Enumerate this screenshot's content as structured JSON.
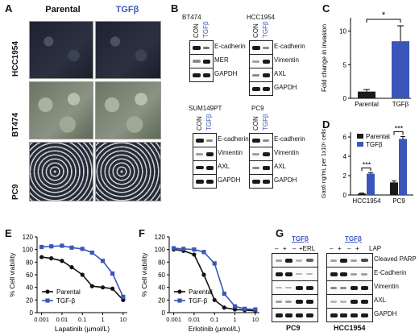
{
  "panels": {
    "A": {
      "letter": "A",
      "col_parental": "Parental",
      "col_tgf": "TGFβ",
      "rows": [
        "HCC1954",
        "BT474",
        "PC9"
      ]
    },
    "B": {
      "letter": "B",
      "blots": [
        {
          "cell": "BT474",
          "conditions": [
            "CON",
            "TGFβ"
          ],
          "markers": [
            "E-cadherin",
            "MER",
            "GAPDH"
          ]
        },
        {
          "cell": "HCC1954",
          "conditions": [
            "CON",
            "TGFβ"
          ],
          "markers": [
            "E-cadherin",
            "Vimentin",
            "AXL",
            "GAPDH"
          ]
        },
        {
          "cell": "SUM149PT",
          "conditions": [
            "CON",
            "TGFβ"
          ],
          "markers": [
            "E-cadherin",
            "Vimentin",
            "AXL",
            "GAPDH"
          ]
        },
        {
          "cell": "PC9",
          "conditions": [
            "CON",
            "TGFβ"
          ],
          "markers": [
            "E-cadherin",
            "Vimentin",
            "AXL",
            "GAPDH"
          ]
        }
      ]
    },
    "G": {
      "letter": "G",
      "tgf_label": "TGFβ",
      "erl_label": "+ERL",
      "lap_label": "LAP",
      "signs": [
        "–",
        "+",
        "–",
        "+"
      ],
      "markers": [
        "Cleaved PARP",
        "E-Cadherin",
        "Vimentin",
        "AXL",
        "GAPDH"
      ],
      "cells": [
        "PC9",
        "HCC1954"
      ]
    }
  },
  "colors": {
    "parental": "#111111",
    "tgf": "#3a56b8",
    "bar_parental": "#1a1a1a",
    "bar_tgf": "#3a56b8"
  },
  "chart_data": [
    {
      "id": "C",
      "letter": "C",
      "type": "bar",
      "categories": [
        "Parental",
        "TGFβ"
      ],
      "values": [
        1.0,
        8.5
      ],
      "errors": [
        0.3,
        2.3
      ],
      "ylabel": "Fold change in invasion",
      "ylim": [
        0,
        12
      ],
      "yticks": [
        0,
        5,
        10
      ],
      "significance": "*"
    },
    {
      "id": "D",
      "letter": "D",
      "type": "bar",
      "categories": [
        "HCC1954",
        "PC9"
      ],
      "series": [
        {
          "name": "Parental",
          "values": [
            0.15,
            1.3
          ],
          "errors": [
            0.05,
            0.15
          ]
        },
        {
          "name": "TGFβ",
          "values": [
            2.2,
            5.8
          ],
          "errors": [
            0.1,
            0.25
          ]
        }
      ],
      "ylabel": "Gas6 ng/mL per 1x10⁶ cells",
      "ylim": [
        0,
        6.5
      ],
      "yticks": [
        0,
        2,
        4,
        6
      ],
      "significance": [
        "***",
        "***"
      ]
    },
    {
      "id": "E",
      "letter": "E",
      "type": "scatter",
      "xlabel": "Lapatinib (µmol/L)",
      "ylabel": "% Cell viability",
      "xscale": "log",
      "xticks": [
        0.001,
        0.01,
        0.1,
        1,
        10
      ],
      "xtick_labels": [
        "0.001",
        "0.01",
        "0.1",
        "1",
        "10"
      ],
      "ylim": [
        0,
        120
      ],
      "yticks": [
        0,
        20,
        40,
        60,
        80,
        100,
        120
      ],
      "series": [
        {
          "name": "Parental",
          "x": [
            0.001,
            0.003,
            0.01,
            0.03,
            0.1,
            0.3,
            1,
            3,
            10
          ],
          "y": [
            88,
            86,
            82,
            72,
            60,
            42,
            40,
            38,
            20
          ]
        },
        {
          "name": "TGF-β",
          "x": [
            0.001,
            0.003,
            0.01,
            0.03,
            0.1,
            0.3,
            1,
            3,
            10
          ],
          "y": [
            104,
            105,
            106,
            103,
            101,
            95,
            82,
            62,
            25
          ]
        }
      ]
    },
    {
      "id": "F",
      "letter": "F",
      "type": "scatter",
      "xlabel": "Erlotinib (µmol/L)",
      "ylabel": "% Cell viability",
      "xscale": "log",
      "xticks": [
        0.001,
        0.01,
        0.1,
        1,
        10
      ],
      "xtick_labels": [
        "0.001",
        "0.01",
        "0.1",
        "1",
        "10"
      ],
      "ylim": [
        0,
        120
      ],
      "yticks": [
        0,
        20,
        40,
        60,
        80,
        100,
        120
      ],
      "series": [
        {
          "name": "Parental",
          "x": [
            0.001,
            0.003,
            0.01,
            0.03,
            0.1,
            0.3,
            1,
            3,
            10
          ],
          "y": [
            100,
            98,
            92,
            60,
            20,
            8,
            5,
            4,
            3
          ]
        },
        {
          "name": "TGF-β",
          "x": [
            0.001,
            0.003,
            0.01,
            0.03,
            0.1,
            0.3,
            1,
            3,
            10
          ],
          "y": [
            102,
            101,
            100,
            96,
            78,
            30,
            10,
            6,
            5
          ]
        }
      ]
    }
  ]
}
